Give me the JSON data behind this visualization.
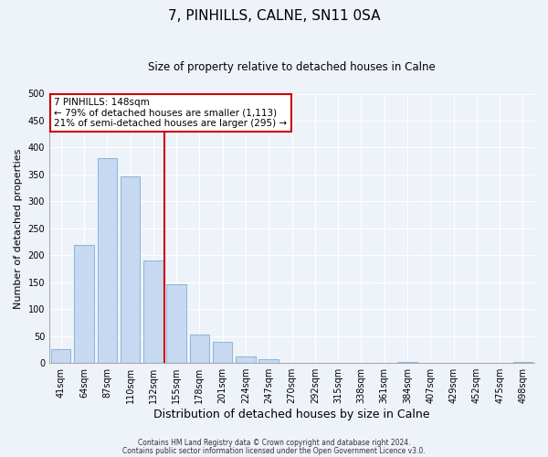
{
  "title": "7, PINHILLS, CALNE, SN11 0SA",
  "subtitle": "Size of property relative to detached houses in Calne",
  "xlabel": "Distribution of detached houses by size in Calne",
  "ylabel": "Number of detached properties",
  "bar_labels": [
    "41sqm",
    "64sqm",
    "87sqm",
    "110sqm",
    "132sqm",
    "155sqm",
    "178sqm",
    "201sqm",
    "224sqm",
    "247sqm",
    "270sqm",
    "292sqm",
    "315sqm",
    "338sqm",
    "361sqm",
    "384sqm",
    "407sqm",
    "429sqm",
    "452sqm",
    "475sqm",
    "498sqm"
  ],
  "bar_values": [
    25,
    220,
    380,
    347,
    190,
    147,
    53,
    40,
    13,
    7,
    0,
    0,
    0,
    0,
    0,
    2,
    0,
    0,
    0,
    0,
    2
  ],
  "bar_color": "#c6d9f0",
  "bar_edge_color": "#7bafd4",
  "vline_x_index": 4.5,
  "vline_color": "#cc0000",
  "ylim": [
    0,
    500
  ],
  "yticks": [
    0,
    50,
    100,
    150,
    200,
    250,
    300,
    350,
    400,
    450,
    500
  ],
  "annotation_title": "7 PINHILLS: 148sqm",
  "annotation_line1": "← 79% of detached houses are smaller (1,113)",
  "annotation_line2": "21% of semi-detached houses are larger (295) →",
  "annotation_box_color": "#cc0000",
  "background_color": "#eef2f9",
  "plot_bg_color": "#eef2f9",
  "footer_line1": "Contains HM Land Registry data © Crown copyright and database right 2024.",
  "footer_line2": "Contains public sector information licensed under the Open Government Licence v3.0.",
  "title_fontsize": 11,
  "subtitle_fontsize": 8.5,
  "tick_fontsize": 7,
  "ylabel_fontsize": 8,
  "xlabel_fontsize": 9,
  "annotation_fontsize": 7.5
}
